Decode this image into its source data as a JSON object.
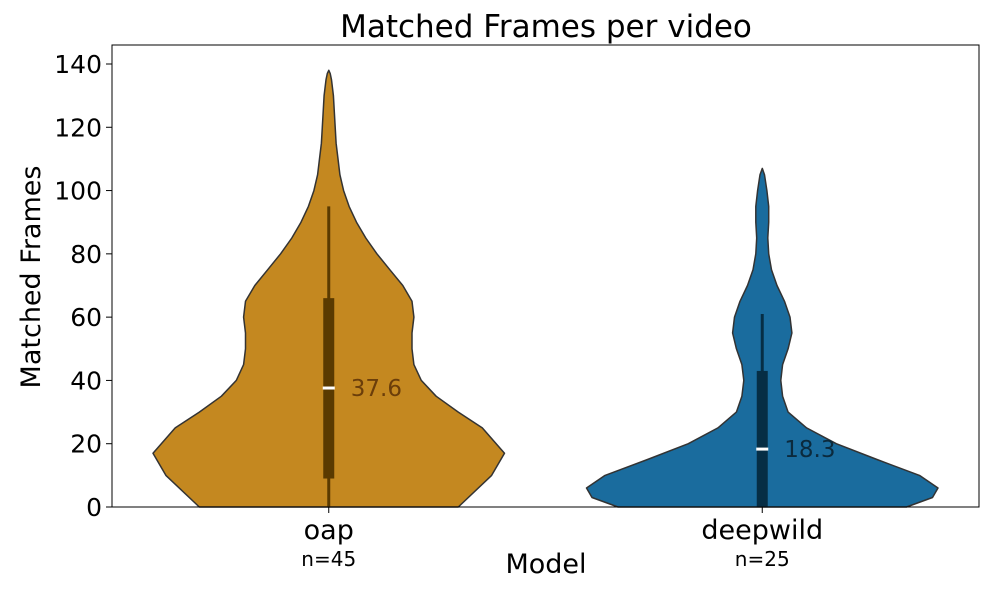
{
  "chart_data": {
    "type": "violin",
    "title": "Matched Frames per video",
    "xlabel": "Model",
    "ylabel": "Matched Frames",
    "ylim": [
      0,
      146
    ],
    "yticks": [
      0,
      20,
      40,
      60,
      80,
      100,
      120,
      140
    ],
    "grid": false,
    "categories": [
      "oap",
      "deepwild"
    ],
    "series": [
      {
        "name": "oap",
        "count_label": "n=45",
        "color": "#c48820",
        "dark_color": "#5a3a00",
        "label_color": "#6b3e0a",
        "median": 37.6,
        "median_label": "37.6",
        "q1": 9,
        "q3": 66,
        "whisker_low": 0,
        "whisker_high": 95,
        "max": 138,
        "density": [
          [
            0,
            0.7
          ],
          [
            10,
            0.88
          ],
          [
            17,
            0.95
          ],
          [
            25,
            0.83
          ],
          [
            30,
            0.7
          ],
          [
            35,
            0.58
          ],
          [
            40,
            0.5
          ],
          [
            45,
            0.46
          ],
          [
            50,
            0.45
          ],
          [
            55,
            0.45
          ],
          [
            60,
            0.46
          ],
          [
            65,
            0.45
          ],
          [
            70,
            0.4
          ],
          [
            75,
            0.33
          ],
          [
            80,
            0.26
          ],
          [
            85,
            0.2
          ],
          [
            90,
            0.15
          ],
          [
            95,
            0.11
          ],
          [
            100,
            0.08
          ],
          [
            105,
            0.06
          ],
          [
            110,
            0.05
          ],
          [
            115,
            0.04
          ],
          [
            120,
            0.035
          ],
          [
            125,
            0.03
          ],
          [
            130,
            0.025
          ],
          [
            135,
            0.015
          ],
          [
            137,
            0.008
          ],
          [
            138,
            0
          ]
        ]
      },
      {
        "name": "deepwild",
        "count_label": "n=25",
        "color": "#1a6c9e",
        "dark_color": "#062e45",
        "label_color": "#0b2a3d",
        "median": 18.3,
        "median_label": "18.3",
        "q1": 0,
        "q3": 43,
        "whisker_low": 0,
        "whisker_high": 61,
        "max": 107,
        "density": [
          [
            0,
            0.78
          ],
          [
            3,
            0.92
          ],
          [
            6,
            0.95
          ],
          [
            10,
            0.85
          ],
          [
            15,
            0.62
          ],
          [
            20,
            0.4
          ],
          [
            25,
            0.24
          ],
          [
            30,
            0.14
          ],
          [
            35,
            0.11
          ],
          [
            40,
            0.1
          ],
          [
            45,
            0.11
          ],
          [
            50,
            0.14
          ],
          [
            55,
            0.16
          ],
          [
            60,
            0.15
          ],
          [
            65,
            0.12
          ],
          [
            70,
            0.08
          ],
          [
            75,
            0.05
          ],
          [
            80,
            0.035
          ],
          [
            85,
            0.03
          ],
          [
            90,
            0.035
          ],
          [
            95,
            0.035
          ],
          [
            100,
            0.025
          ],
          [
            105,
            0.012
          ],
          [
            107,
            0
          ]
        ]
      }
    ]
  }
}
